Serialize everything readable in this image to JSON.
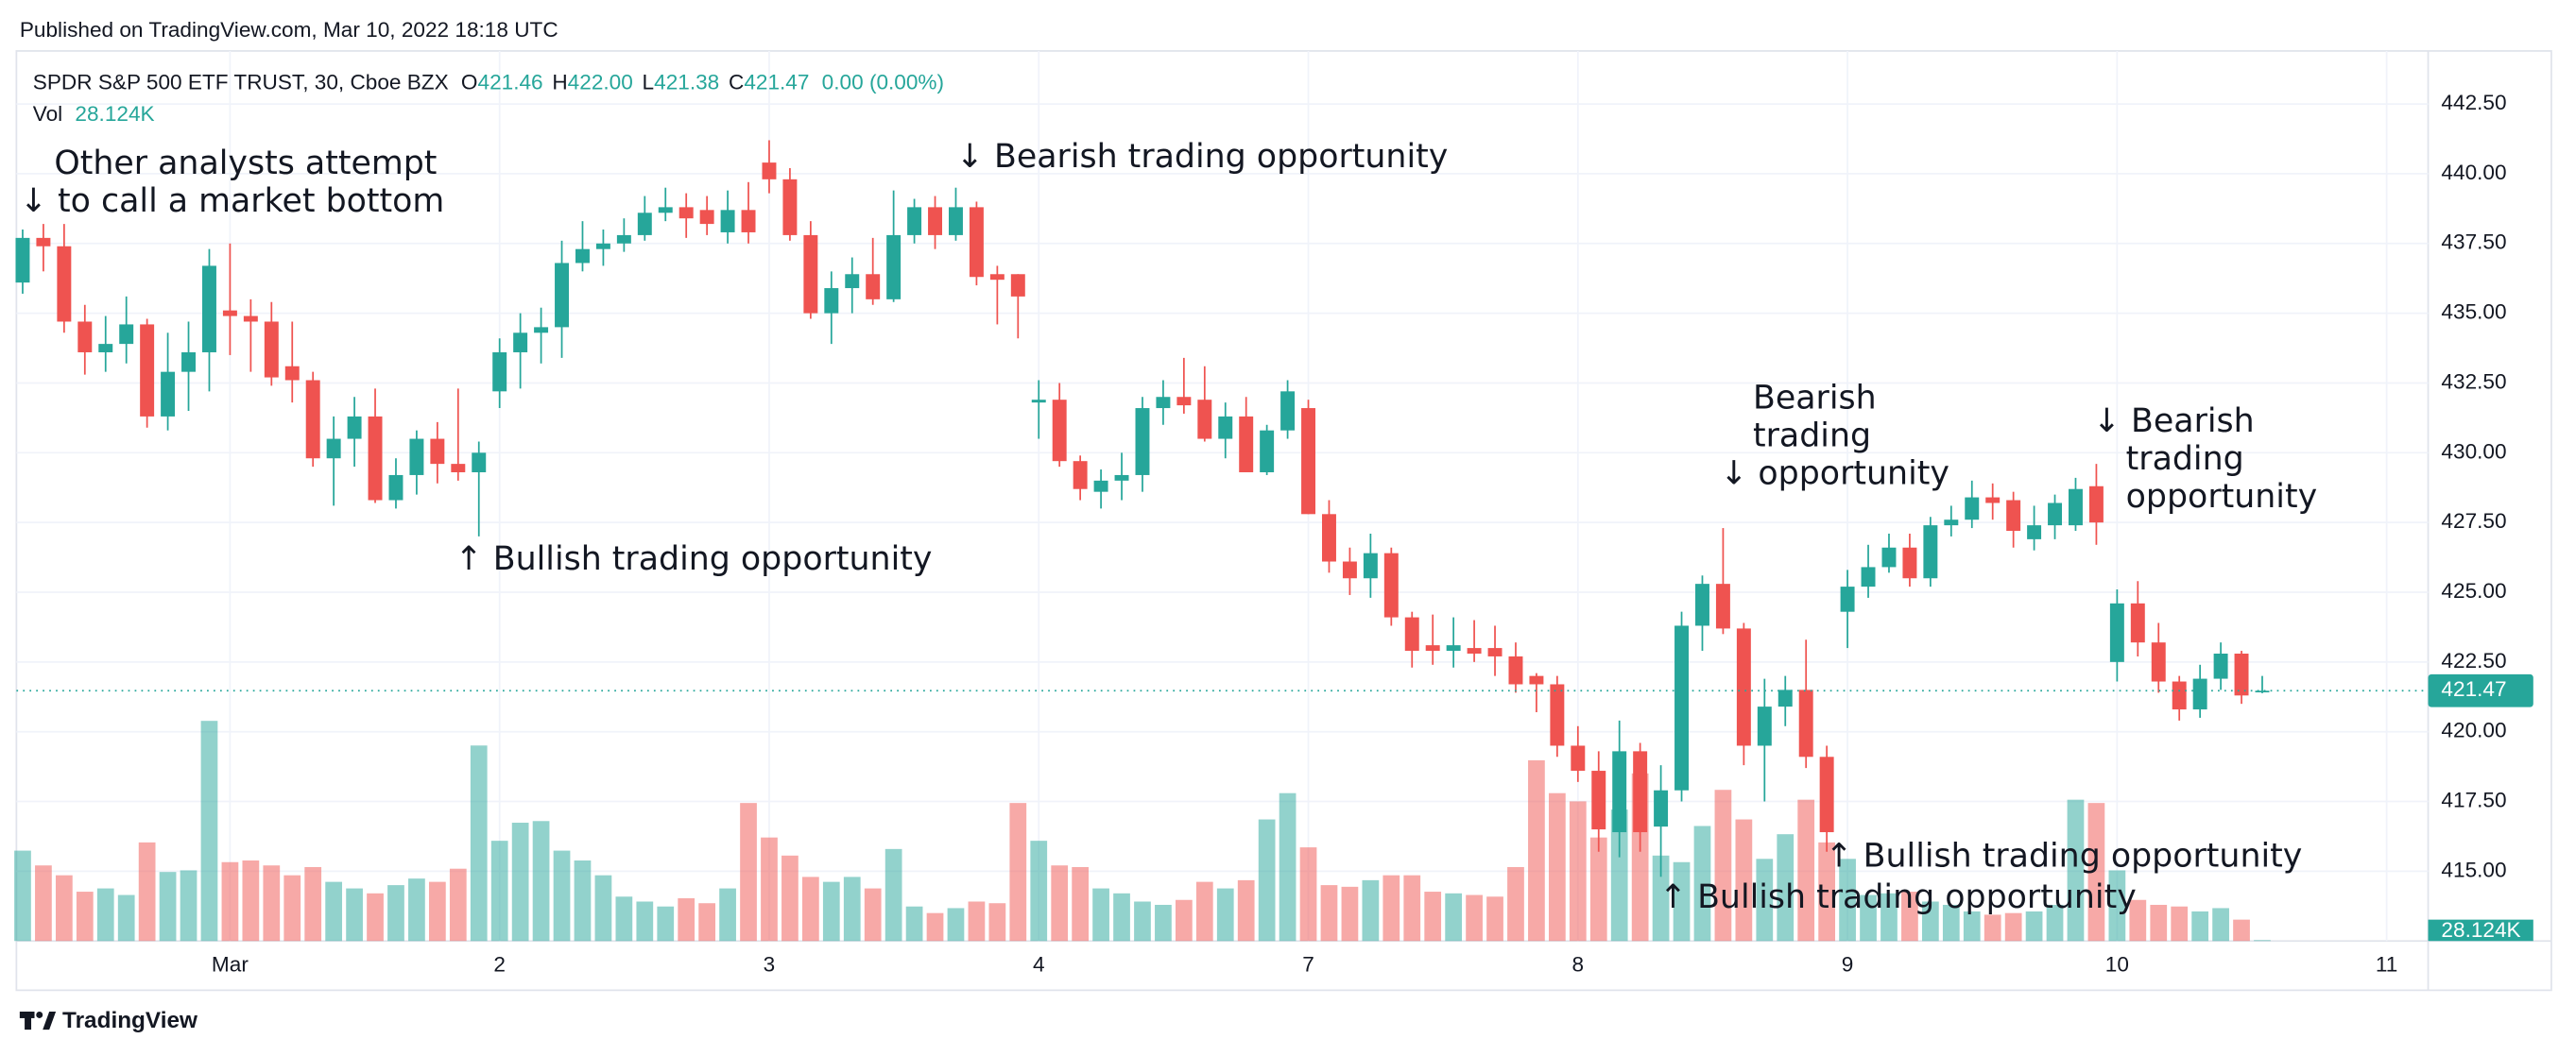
{
  "header": {
    "published": "Published on TradingView.com, Mar 10, 2022 18:18 UTC"
  },
  "footer": {
    "brand": "TradingView"
  },
  "chart_data": {
    "type": "candlestick",
    "legend": {
      "symbol": "SPDR S&P 500 ETF TRUST, 30, Cboe BZX",
      "fields": [
        {
          "key": "O",
          "value": "421.46"
        },
        {
          "key": "H",
          "value": "422.00"
        },
        {
          "key": "L",
          "value": "421.38"
        },
        {
          "key": "C",
          "value": "421.47"
        }
      ],
      "change": "0.00 (0.00%)",
      "vol_key": "Vol"
    },
    "volume_label": "28.124K",
    "last_price": {
      "value": 421.47,
      "label": "421.47"
    },
    "up_color": "#26a69a",
    "down_color": "#ef5350",
    "xlim": [
      -0.3,
      116
    ],
    "xticks": [
      {
        "value": 10,
        "label": "Mar"
      },
      {
        "value": 23,
        "label": "2"
      },
      {
        "value": 36,
        "label": "3"
      },
      {
        "value": 49,
        "label": "4"
      },
      {
        "value": 62,
        "label": "7"
      },
      {
        "value": 75,
        "label": "8"
      },
      {
        "value": 88,
        "label": "9"
      },
      {
        "value": 101,
        "label": "10"
      },
      {
        "value": 114,
        "label": "11"
      }
    ],
    "ylim": [
      412.5,
      444.4
    ],
    "yticks": [
      {
        "value": 415,
        "label": "415.00"
      },
      {
        "value": 417.5,
        "label": "417.50"
      },
      {
        "value": 420,
        "label": "420.00"
      },
      {
        "value": 422.5,
        "label": "422.50"
      },
      {
        "value": 425,
        "label": "425.00"
      },
      {
        "value": 427.5,
        "label": "427.50"
      },
      {
        "value": 430,
        "label": "430.00"
      },
      {
        "value": 432.5,
        "label": "432.50"
      },
      {
        "value": 435,
        "label": "435.00"
      },
      {
        "value": 437.5,
        "label": "437.50"
      },
      {
        "value": 440,
        "label": "440.00"
      },
      {
        "value": 442.5,
        "label": "442.50"
      }
    ],
    "grid": true,
    "vlim": [
      0,
      8000000
    ],
    "open": [
      436.1,
      437.7,
      437.4,
      434.7,
      433.6,
      433.9,
      434.6,
      431.3,
      432.9,
      433.6,
      435.1,
      434.9,
      434.7,
      433.1,
      432.6,
      429.8,
      430.5,
      431.3,
      428.3,
      429.2,
      430.5,
      429.6,
      429.3,
      432.2,
      433.6,
      434.3,
      434.5,
      436.8,
      437.3,
      437.5,
      437.8,
      438.6,
      438.8,
      438.7,
      437.9,
      438.7,
      440.4,
      439.8,
      437.8,
      435.0,
      435.9,
      436.4,
      435.5,
      437.8,
      438.8,
      437.8,
      438.8,
      436.4,
      436.4,
      431.8,
      431.9,
      429.7,
      428.6,
      429.0,
      429.2,
      431.6,
      432.0,
      431.9,
      430.5,
      431.3,
      429.3,
      430.8,
      431.6,
      427.8,
      426.1,
      425.5,
      426.4,
      424.1,
      423.1,
      422.9,
      423.0,
      423.0,
      422.7,
      422.0,
      421.7,
      419.5,
      418.6,
      416.4,
      419.3,
      416.6,
      417.9,
      423.8,
      425.3,
      423.7,
      419.5,
      420.9,
      421.5,
      419.1,
      424.3,
      425.2,
      425.9,
      426.6,
      425.5,
      427.4,
      427.6,
      428.4,
      428.3,
      426.9,
      427.4,
      427.4,
      428.8,
      422.5,
      424.6,
      423.2,
      421.8,
      420.8,
      421.9,
      422.8,
      421.46
    ],
    "high": [
      438.0,
      438.2,
      438.2,
      435.3,
      434.9,
      435.6,
      434.8,
      434.3,
      434.7,
      437.3,
      437.5,
      435.5,
      435.4,
      434.7,
      432.9,
      431.3,
      432.0,
      432.3,
      429.8,
      430.8,
      431.1,
      432.3,
      430.4,
      434.1,
      435.0,
      435.2,
      437.6,
      438.3,
      438.0,
      438.4,
      439.2,
      439.5,
      439.3,
      439.2,
      439.4,
      439.7,
      441.2,
      440.2,
      438.3,
      436.5,
      437.0,
      437.7,
      439.4,
      439.1,
      439.2,
      439.5,
      439.0,
      436.7,
      436.4,
      432.6,
      432.5,
      429.9,
      429.4,
      430.0,
      432.0,
      432.6,
      433.4,
      433.1,
      431.8,
      432.0,
      431.0,
      432.6,
      431.9,
      428.3,
      426.6,
      427.1,
      426.6,
      424.3,
      424.2,
      424.1,
      424.0,
      423.8,
      423.2,
      422.1,
      422.0,
      420.2,
      419.3,
      420.4,
      419.6,
      418.8,
      424.3,
      425.6,
      427.3,
      423.9,
      421.9,
      422.0,
      423.3,
      419.5,
      425.8,
      426.7,
      427.1,
      427.1,
      427.7,
      428.1,
      429.0,
      428.9,
      428.6,
      428.1,
      428.5,
      429.1,
      429.6,
      425.1,
      425.4,
      423.9,
      422.0,
      422.4,
      423.2,
      422.9,
      422.0
    ],
    "low": [
      435.7,
      436.5,
      434.3,
      432.8,
      432.9,
      433.2,
      430.9,
      430.8,
      431.5,
      432.2,
      433.5,
      432.9,
      432.4,
      431.8,
      429.5,
      428.1,
      429.5,
      428.2,
      428.0,
      428.5,
      428.9,
      429.0,
      427.0,
      431.6,
      432.3,
      433.2,
      433.4,
      436.5,
      436.7,
      437.2,
      437.6,
      438.3,
      437.7,
      437.8,
      437.5,
      437.5,
      439.3,
      437.6,
      434.8,
      433.9,
      435.0,
      435.3,
      435.4,
      437.5,
      437.3,
      437.6,
      436.0,
      434.6,
      434.1,
      430.5,
      429.5,
      428.3,
      428.0,
      428.3,
      428.6,
      431.0,
      431.4,
      430.4,
      429.8,
      429.3,
      429.2,
      430.5,
      427.8,
      425.7,
      424.9,
      424.8,
      423.8,
      422.3,
      422.4,
      422.3,
      422.5,
      422.0,
      421.4,
      420.7,
      419.1,
      418.2,
      415.7,
      415.5,
      415.7,
      414.8,
      417.5,
      422.9,
      423.5,
      418.8,
      417.5,
      420.2,
      418.7,
      415.7,
      423.0,
      424.8,
      425.7,
      425.2,
      425.2,
      427.0,
      427.3,
      427.6,
      426.6,
      426.5,
      426.9,
      427.2,
      426.7,
      421.8,
      422.7,
      421.4,
      420.4,
      420.5,
      421.5,
      421.0,
      421.38
    ],
    "close": [
      437.7,
      437.4,
      434.7,
      433.6,
      433.9,
      434.6,
      431.3,
      432.9,
      433.6,
      436.7,
      434.9,
      434.7,
      432.7,
      432.6,
      429.8,
      430.5,
      431.3,
      428.3,
      429.2,
      430.5,
      429.6,
      429.3,
      430.0,
      433.6,
      434.3,
      434.5,
      436.8,
      437.3,
      437.5,
      437.8,
      438.6,
      438.8,
      438.4,
      438.2,
      438.7,
      437.9,
      439.8,
      437.8,
      435.0,
      435.9,
      436.4,
      435.5,
      437.8,
      438.8,
      437.8,
      438.8,
      436.3,
      436.2,
      435.6,
      431.9,
      429.7,
      428.7,
      429.0,
      429.2,
      431.6,
      432.0,
      431.7,
      430.5,
      431.3,
      429.3,
      430.8,
      432.2,
      427.8,
      426.1,
      425.5,
      426.4,
      424.1,
      422.9,
      422.9,
      423.1,
      422.8,
      422.7,
      421.7,
      421.7,
      419.5,
      418.6,
      416.5,
      419.3,
      416.4,
      417.9,
      423.8,
      425.3,
      423.7,
      419.5,
      420.9,
      421.5,
      419.1,
      416.4,
      425.2,
      425.9,
      426.6,
      425.5,
      427.4,
      427.6,
      428.4,
      428.2,
      427.2,
      427.4,
      428.2,
      428.7,
      427.5,
      424.6,
      423.2,
      421.8,
      420.8,
      421.9,
      422.8,
      421.3,
      421.47
    ],
    "volume": [
      2915000,
      2438000,
      2120000,
      1590000,
      1696000,
      1484000,
      3180000,
      2226000,
      2279000,
      7102000,
      2544000,
      2597000,
      2438000,
      2120000,
      2385000,
      1908000,
      1696000,
      1537000,
      1802000,
      2014000,
      1908000,
      2332000,
      6307000,
      3233000,
      3816000,
      3869000,
      2915000,
      2597000,
      2120000,
      1431000,
      1272000,
      1113000,
      1378000,
      1219000,
      1696000,
      4452000,
      3339000,
      2756000,
      2067000,
      1908000,
      2067000,
      1696000,
      2968000,
      1113000,
      901000,
      1060000,
      1272000,
      1219000,
      4452000,
      3233000,
      2438000,
      2385000,
      1696000,
      1537000,
      1272000,
      1166000,
      1325000,
      1908000,
      1696000,
      1961000,
      3922000,
      4770000,
      3021000,
      1802000,
      1749000,
      1961000,
      2120000,
      2120000,
      1590000,
      1537000,
      1484000,
      1431000,
      2385000,
      5830000,
      4770000,
      4505000,
      3339000,
      4240000,
      5406000,
      2756000,
      2544000,
      3710000,
      4876000,
      3922000,
      2650000,
      3445000,
      4558000,
      3180000,
      2650000,
      1484000,
      1537000,
      1590000,
      1272000,
      1166000,
      954000,
      848000,
      901000,
      954000,
      1166000,
      4558000,
      4452000,
      2279000,
      1325000,
      1166000,
      1113000,
      954000,
      1060000,
      689000,
      28124
    ],
    "annotations": [
      {
        "lines": [
          "Other analysts attempt",
          "↓ to call a market bottom"
        ]
      },
      {
        "lines": [
          "↓ Bearish trading opportunity"
        ]
      },
      {
        "lines": [
          "↑ Bullish trading opportunity"
        ]
      },
      {
        "lines": [
          "Bearish",
          "trading",
          "↓ opportunity"
        ]
      },
      {
        "lines": [
          "↓ Bearish",
          "trading",
          "opportunity"
        ]
      },
      {
        "lines": [
          "↑ Bullish trading opportunity"
        ]
      },
      {
        "lines": [
          "↑ Bullish trading opportunity"
        ]
      }
    ]
  }
}
